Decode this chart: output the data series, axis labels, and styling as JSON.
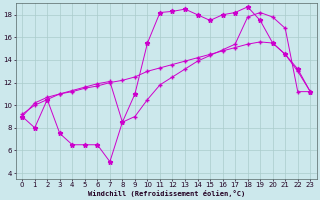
{
  "xlabel": "Windchill (Refroidissement éolien,°C)",
  "bg_color": "#cce8ec",
  "line_color": "#cc00cc",
  "grid_color": "#aacccc",
  "xlim": [
    -0.5,
    23.5
  ],
  "ylim": [
    3.5,
    19.0
  ],
  "xticks": [
    0,
    1,
    2,
    3,
    4,
    5,
    6,
    7,
    8,
    9,
    10,
    11,
    12,
    13,
    14,
    15,
    16,
    17,
    18,
    19,
    20,
    21,
    22,
    23
  ],
  "yticks": [
    4,
    6,
    8,
    10,
    12,
    14,
    16,
    18
  ],
  "line1_x": [
    0,
    1,
    2,
    3,
    4,
    5,
    6,
    7,
    8,
    9,
    10,
    11,
    12,
    13,
    14,
    15,
    16,
    17,
    18,
    19,
    20,
    21,
    22,
    23
  ],
  "line1_y": [
    9.0,
    8.0,
    10.5,
    7.5,
    6.5,
    6.5,
    6.5,
    5.0,
    8.5,
    11.0,
    15.5,
    18.2,
    18.3,
    18.5,
    18.0,
    17.5,
    18.0,
    18.2,
    18.7,
    17.5,
    15.5,
    14.5,
    13.2,
    11.2
  ],
  "line2_x": [
    0,
    1,
    2,
    3,
    4,
    5,
    6,
    7,
    8,
    9,
    10,
    11,
    12,
    13,
    14,
    15,
    16,
    17,
    18,
    19,
    20,
    21,
    22,
    23
  ],
  "line2_y": [
    9.2,
    10.0,
    10.5,
    11.0,
    11.2,
    11.5,
    11.7,
    12.0,
    12.2,
    12.5,
    13.0,
    13.3,
    13.6,
    13.9,
    14.2,
    14.5,
    14.8,
    15.1,
    15.4,
    15.6,
    15.5,
    14.5,
    13.0,
    11.2
  ],
  "line3_x": [
    0,
    1,
    2,
    3,
    4,
    5,
    6,
    7,
    8,
    9,
    10,
    11,
    12,
    13,
    14,
    15,
    16,
    17,
    18,
    19,
    20,
    21,
    22,
    23
  ],
  "line3_y": [
    9.0,
    10.2,
    10.7,
    11.0,
    11.3,
    11.6,
    11.9,
    12.1,
    8.5,
    9.0,
    10.5,
    11.8,
    12.5,
    13.2,
    13.9,
    14.4,
    14.9,
    15.4,
    17.8,
    18.2,
    17.8,
    16.8,
    11.2,
    11.2
  ],
  "tick_fontsize": 5,
  "xlabel_fontsize": 5,
  "lw": 0.7,
  "ms": 2.0
}
